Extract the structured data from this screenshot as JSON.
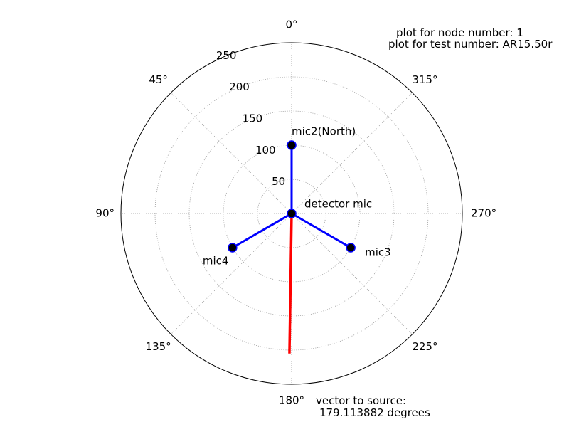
{
  "notes": {
    "node": "plot for node number: 1",
    "test": "plot for test number: AR15.50r",
    "vector_line1": "vector to source:",
    "vector_line2": "179.113882 degrees"
  },
  "chart_data": {
    "type": "polar",
    "theta_zero": "top",
    "theta_direction": "counterclockwise",
    "r_range": [
      0,
      250
    ],
    "grid": true,
    "angle_ticks": [
      {
        "deg": 0,
        "label": "0°"
      },
      {
        "deg": 45,
        "label": "45°"
      },
      {
        "deg": 90,
        "label": "90°"
      },
      {
        "deg": 135,
        "label": "135°"
      },
      {
        "deg": 180,
        "label": "180°"
      },
      {
        "deg": 225,
        "label": "225°"
      },
      {
        "deg": 270,
        "label": "270°"
      },
      {
        "deg": 315,
        "label": "315°"
      }
    ],
    "radial_ticks": [
      {
        "r": 50,
        "label": "50"
      },
      {
        "r": 100,
        "label": "100"
      },
      {
        "r": 150,
        "label": "150"
      },
      {
        "r": 200,
        "label": "200"
      },
      {
        "r": 250,
        "label": "250"
      }
    ],
    "microphones": [
      {
        "label": "detector mic",
        "deg": 0,
        "r": 0
      },
      {
        "label": "mic2(North)",
        "deg": 0,
        "r": 100
      },
      {
        "label": "mic3",
        "deg": 240,
        "r": 100
      },
      {
        "label": "mic4",
        "deg": 120,
        "r": 100
      }
    ],
    "source_vector": {
      "deg": 179.113882,
      "r": 205
    },
    "colors": {
      "arms": "#0000ff",
      "vector": "#ff0000",
      "mics": "#000000",
      "grid": "#999999",
      "frame": "#000000"
    }
  }
}
